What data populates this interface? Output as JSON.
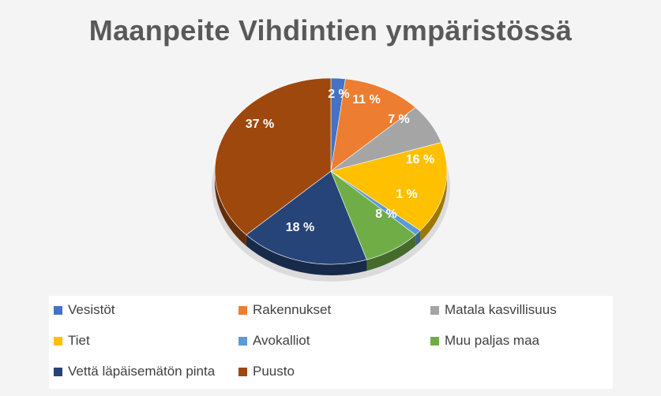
{
  "chart_data": {
    "type": "pie",
    "title": "Maanpeite Vihdintien ympäristössä",
    "slices": [
      {
        "name": "Vesistöt",
        "value": 2,
        "label": "2 %",
        "color": "#4472c4"
      },
      {
        "name": "Rakennukset",
        "value": 11,
        "label": "11 %",
        "color": "#ed7d31"
      },
      {
        "name": "Matala kasvillisuus",
        "value": 7,
        "label": "7 %",
        "color": "#a5a5a5"
      },
      {
        "name": "Tiet",
        "value": 16,
        "label": "16 %",
        "color": "#ffc000"
      },
      {
        "name": "Avokalliot",
        "value": 1,
        "label": "1 %",
        "color": "#5b9bd5"
      },
      {
        "name": "Muu paljas maa",
        "value": 8,
        "label": "8 %",
        "color": "#70ad47"
      },
      {
        "name": "Vettä läpäisemätön pinta",
        "value": 18,
        "label": "18 %",
        "color": "#264478"
      },
      {
        "name": "Puusto",
        "value": 37,
        "label": "37 %",
        "color": "#9e480e"
      }
    ],
    "legend_position": "bottom"
  }
}
